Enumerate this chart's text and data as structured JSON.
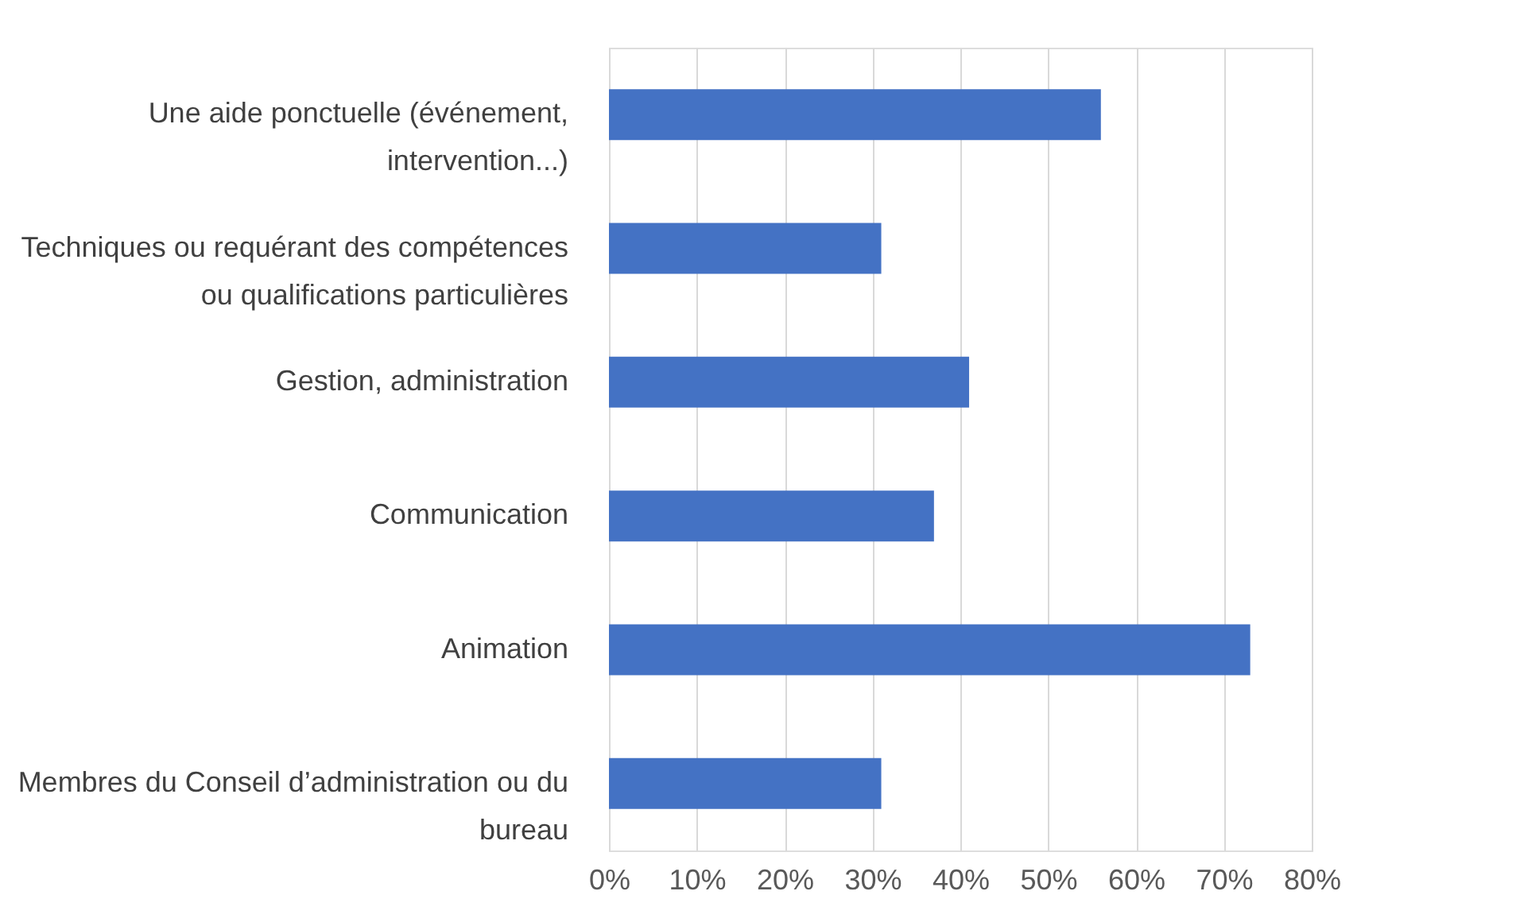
{
  "chart_data": {
    "type": "bar",
    "orientation": "horizontal",
    "categories": [
      "Une aide ponctuelle (événement, intervention...)",
      "Techniques ou requérant des compétences ou qualifications particulières",
      "Gestion, administration",
      "Communication",
      "Animation",
      "Membres du Conseil d’administration ou du bureau"
    ],
    "values": [
      56,
      31,
      41,
      37,
      73,
      31
    ],
    "color": "#4472c4",
    "xlim": [
      0,
      80
    ],
    "xticks": [
      {
        "value": 0,
        "label": "0%"
      },
      {
        "value": 10,
        "label": "10%"
      },
      {
        "value": 20,
        "label": "20%"
      },
      {
        "value": 30,
        "label": "30%"
      },
      {
        "value": 40,
        "label": "40%"
      },
      {
        "value": 50,
        "label": "50%"
      },
      {
        "value": 60,
        "label": "60%"
      },
      {
        "value": 70,
        "label": "70%"
      },
      {
        "value": 80,
        "label": "80%"
      }
    ],
    "grid": "x"
  }
}
